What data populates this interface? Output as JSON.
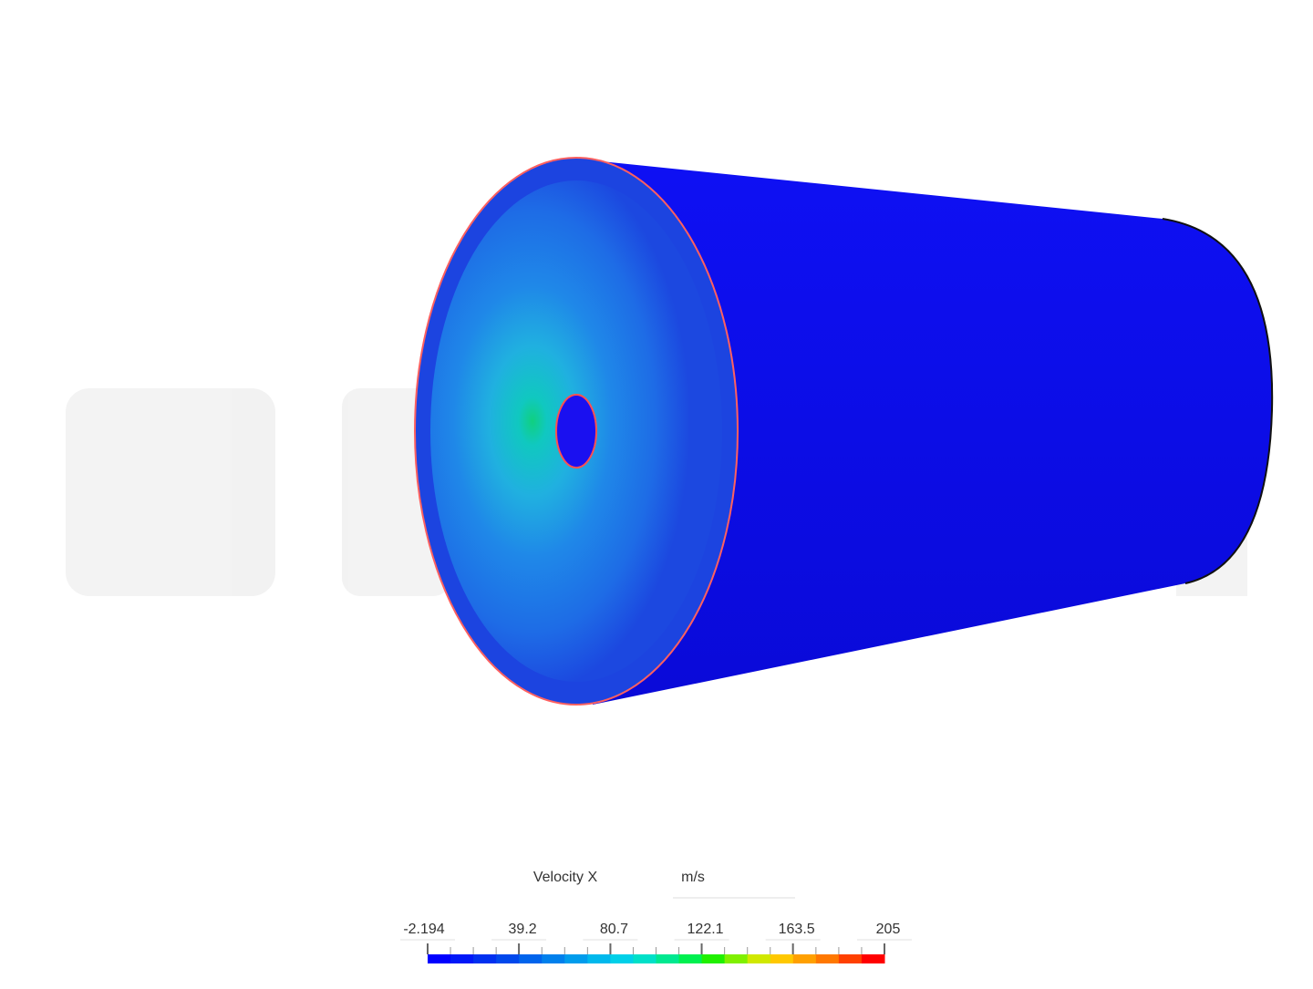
{
  "legend": {
    "title": "Velocity X",
    "unit": "m/s",
    "ticks": [
      -2.194,
      39.2,
      80.7,
      122.1,
      163.5,
      205
    ],
    "colors": [
      "#0000ff",
      "#0018f8",
      "#0030f0",
      "#0048ec",
      "#0064ec",
      "#0080ec",
      "#009cec",
      "#00b8ec",
      "#00d0e8",
      "#00e0c8",
      "#00e890",
      "#00f050",
      "#20f000",
      "#80f000",
      "#d0e800",
      "#ffc800",
      "#ffa000",
      "#ff7800",
      "#ff4000",
      "#ff0000"
    ]
  }
}
